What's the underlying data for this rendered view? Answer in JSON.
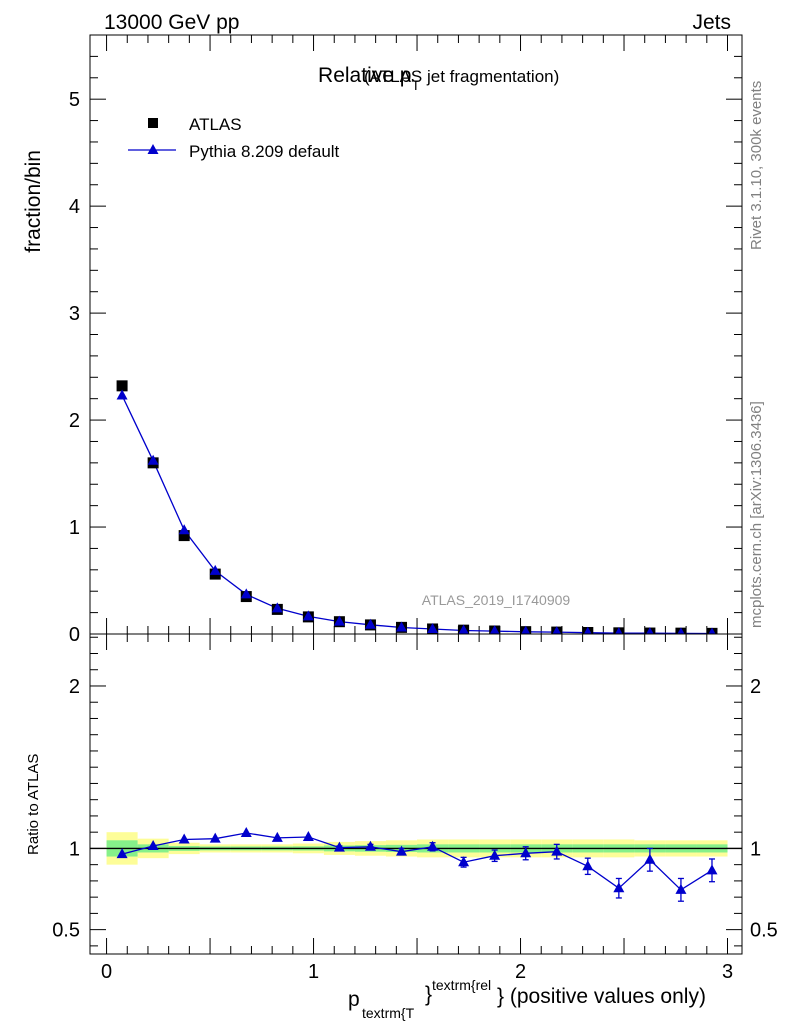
{
  "header": {
    "left": "13000 GeV pp",
    "right": "Jets"
  },
  "side": {
    "rivet": "Rivet 3.1.10,  300k events",
    "mcplots": "mcplots.cern.ch [arXiv:1306.3436]"
  },
  "colors": {
    "data": "#000000",
    "mc": "#0000cc",
    "band_inner": "#86f08a",
    "band_outer": "#fdfd98"
  },
  "chart_data": [
    {
      "type": "scatter",
      "title": "Relative p",
      "title_sub": "T",
      "title_suffix": "(ATLAS jet fragmentation)",
      "ylabel": "fraction/bin",
      "watermark": "ATLAS_2019_I1740909",
      "xlim": [
        -0.08,
        3.07
      ],
      "ylim": [
        0,
        5.6
      ],
      "yticks": [
        "0",
        "1",
        "2",
        "3",
        "4",
        "5"
      ],
      "legend_position": "top-left",
      "series": [
        {
          "name": "ATLAS",
          "marker": "square",
          "x": [
            0.075,
            0.225,
            0.375,
            0.525,
            0.675,
            0.825,
            0.975,
            1.125,
            1.275,
            1.425,
            1.575,
            1.725,
            1.875,
            2.025,
            2.175,
            2.325,
            2.475,
            2.625,
            2.775,
            2.925
          ],
          "y": [
            2.32,
            1.6,
            0.92,
            0.56,
            0.35,
            0.23,
            0.16,
            0.115,
            0.085,
            0.062,
            0.047,
            0.036,
            0.028,
            0.022,
            0.018,
            0.014,
            0.011,
            0.009,
            0.008,
            0.006
          ]
        },
        {
          "name": "Pythia 8.209 default",
          "marker": "triangle",
          "x": [
            0.075,
            0.225,
            0.375,
            0.525,
            0.675,
            0.825,
            0.975,
            1.125,
            1.275,
            1.425,
            1.575,
            1.725,
            1.875,
            2.025,
            2.175,
            2.325,
            2.475,
            2.625,
            2.775,
            2.925
          ],
          "y": [
            2.23,
            1.62,
            0.97,
            0.59,
            0.37,
            0.24,
            0.165,
            0.116,
            0.086,
            0.061,
            0.047,
            0.033,
            0.027,
            0.021,
            0.018,
            0.012,
            0.008,
            0.0085,
            0.006,
            0.005
          ]
        }
      ]
    },
    {
      "type": "line",
      "ylabel": "Ratio to ATLAS",
      "xlabel": "p",
      "xlabel_sub": "textrm{T",
      "xlabel_sup": "textrm{rel",
      "xlabel_brace": "}",
      "xlabel_suffix": "} (positive values only)",
      "xlim": [
        -0.08,
        3.07
      ],
      "ylim": [
        0.35,
        2.32
      ],
      "xticks": [
        "0",
        "1",
        "2",
        "3"
      ],
      "yticks": [
        "0.5",
        "1",
        "2"
      ],
      "series": [
        {
          "name": "Pythia 8.209 default",
          "x": [
            0.075,
            0.225,
            0.375,
            0.525,
            0.675,
            0.825,
            0.975,
            1.125,
            1.275,
            1.425,
            1.575,
            1.725,
            1.875,
            2.025,
            2.175,
            2.325,
            2.475,
            2.625,
            2.775,
            2.925
          ],
          "y": [
            0.965,
            1.015,
            1.055,
            1.06,
            1.095,
            1.065,
            1.07,
            1.005,
            1.01,
            0.98,
            1.01,
            0.915,
            0.955,
            0.97,
            0.98,
            0.89,
            0.755,
            0.93,
            0.745,
            0.865
          ],
          "err": [
            0.005,
            0.005,
            0.005,
            0.005,
            0.005,
            0.005,
            0.005,
            0.01,
            0.015,
            0.02,
            0.025,
            0.03,
            0.035,
            0.04,
            0.045,
            0.05,
            0.06,
            0.07,
            0.07,
            0.07
          ]
        }
      ],
      "band": {
        "x_edges": [
          0.0,
          0.15,
          0.3,
          0.45,
          0.6,
          0.75,
          0.9,
          1.05,
          1.2,
          1.35,
          1.5,
          1.65,
          1.8,
          1.95,
          2.1,
          2.25,
          2.4,
          2.55,
          2.7,
          2.85,
          3.0
        ],
        "inner": [
          0.05,
          0.025,
          0.015,
          0.012,
          0.012,
          0.012,
          0.013,
          0.018,
          0.02,
          0.022,
          0.025,
          0.025,
          0.025,
          0.025,
          0.025,
          0.025,
          0.025,
          0.025,
          0.025,
          0.025
        ],
        "outer": [
          0.1,
          0.06,
          0.035,
          0.025,
          0.025,
          0.025,
          0.03,
          0.04,
          0.045,
          0.05,
          0.055,
          0.055,
          0.055,
          0.055,
          0.055,
          0.055,
          0.055,
          0.05,
          0.05,
          0.05
        ]
      }
    }
  ]
}
